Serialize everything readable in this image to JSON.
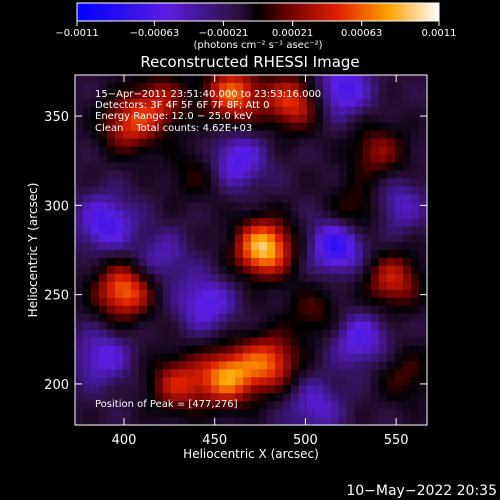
{
  "chart_data": {
    "type": "heatmap",
    "title": "Reconstructed RHESSI Image",
    "xlabel": "Heliocentric X (arcsec)",
    "ylabel": "Heliocentric Y (arcsec)",
    "xlim": [
      373,
      567
    ],
    "ylim": [
      177,
      373
    ],
    "x_ticks": [
      {
        "value": 400,
        "label": "400"
      },
      {
        "value": 450,
        "label": "450"
      },
      {
        "value": 500,
        "label": "500"
      },
      {
        "value": 550,
        "label": "550"
      }
    ],
    "y_ticks": [
      {
        "value": 200,
        "label": "200"
      },
      {
        "value": 250,
        "label": "250"
      },
      {
        "value": 300,
        "label": "300"
      },
      {
        "value": 350,
        "label": "350"
      }
    ],
    "colorbar": {
      "label": "(photons cm⁻² s⁻¹ asec⁻²)",
      "range": [
        -0.0011,
        0.0011
      ],
      "ticks": [
        {
          "value": -0.0011,
          "label": "−0.0011"
        },
        {
          "value": -0.00063,
          "label": "−0.00063"
        },
        {
          "value": -0.00021,
          "label": "−0.00021"
        },
        {
          "value": 0.00021,
          "label": "0.00021"
        },
        {
          "value": 0.00063,
          "label": "0.00063"
        },
        {
          "value": 0.0011,
          "label": "0.0011"
        }
      ]
    },
    "annotations": [
      "15−Apr−2011 23:51:40.000 to 23:53:16.000",
      "Detectors: 3F 4F 5F 6F 7F 8F; Att 0",
      "Energy Range: 12.0 − 25.0 keV",
      "Clean    Total counts: 4.62E+03"
    ],
    "peak_label": "Position of Peak = [477,276]",
    "grid": false,
    "sources": [
      {
        "x": 477,
        "y": 276,
        "value": 0.0011
      },
      {
        "x": 460,
        "y": 362,
        "value": 0.00082
      },
      {
        "x": 493,
        "y": 358,
        "value": 0.0007
      },
      {
        "x": 403,
        "y": 345,
        "value": 0.00062
      },
      {
        "x": 420,
        "y": 358,
        "value": 0.0005
      },
      {
        "x": 400,
        "y": 252,
        "value": 0.00085
      },
      {
        "x": 457,
        "y": 204,
        "value": 0.0009
      },
      {
        "x": 480,
        "y": 212,
        "value": 0.00075
      },
      {
        "x": 430,
        "y": 200,
        "value": 0.0006
      },
      {
        "x": 548,
        "y": 258,
        "value": 0.0006
      },
      {
        "x": 540,
        "y": 330,
        "value": 0.00045
      },
      {
        "x": 528,
        "y": 296,
        "value": 0.0004
      },
      {
        "x": 505,
        "y": 240,
        "value": 0.0003
      },
      {
        "x": 555,
        "y": 205,
        "value": 0.0003
      },
      {
        "x": 440,
        "y": 318,
        "value": 0.00025
      },
      {
        "x": 520,
        "y": 365,
        "value": -0.00052
      },
      {
        "x": 462,
        "y": 325,
        "value": -0.00048
      },
      {
        "x": 518,
        "y": 278,
        "value": -0.00065
      },
      {
        "x": 390,
        "y": 290,
        "value": -0.0005
      },
      {
        "x": 445,
        "y": 245,
        "value": -0.00045
      },
      {
        "x": 530,
        "y": 225,
        "value": -0.00045
      },
      {
        "x": 388,
        "y": 215,
        "value": -0.0004
      },
      {
        "x": 550,
        "y": 300,
        "value": -0.00035
      },
      {
        "x": 505,
        "y": 188,
        "value": -0.00035
      },
      {
        "x": 420,
        "y": 270,
        "value": -0.0003
      }
    ]
  },
  "footer": {
    "timestamp": "10−May−2022 20:35"
  }
}
